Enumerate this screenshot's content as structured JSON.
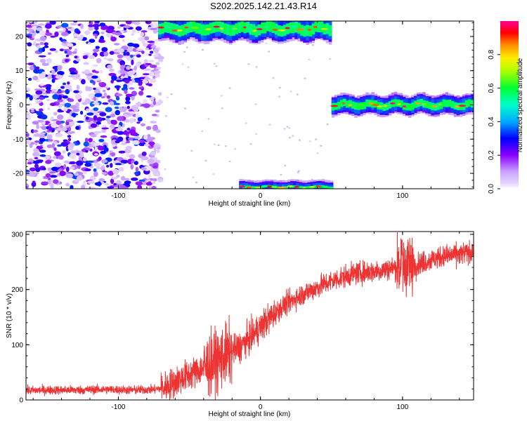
{
  "title": "S202.2025.142.21.43.R14",
  "chart_data": [
    {
      "type": "heatmap",
      "xlabel": "Height of straight line (km)",
      "ylabel": "Frequency (Hz)",
      "xlim": [
        -165,
        150
      ],
      "ylim": [
        -24.5,
        24.5
      ],
      "xticks": [
        -100,
        0,
        100
      ],
      "yticks": [
        -20,
        -10,
        0,
        10,
        20
      ],
      "colorbar": {
        "label": "Normalized spectral amplitude",
        "range": [
          0,
          1
        ],
        "ticks": [
          "0.0",
          "0.2",
          "0.4",
          "0.6",
          "0.8"
        ],
        "colormap": [
          "#ffffff",
          "#e6d5ff",
          "#8b00ff",
          "#0000ff",
          "#00ccff",
          "#00ff66",
          "#ccff00",
          "#ffcc00",
          "#ff4400",
          "#ff0000",
          "#ff0099"
        ]
      },
      "regions": [
        {
          "name": "broadband noise",
          "x": [
            -165,
            -70
          ],
          "y": [
            -24.5,
            24.5
          ],
          "amplitude": [
            0.0,
            0.35
          ]
        },
        {
          "name": "aliased line upper",
          "x": [
            -72,
            50
          ],
          "y": [
            20,
            24.5
          ],
          "amplitude": [
            0.5,
            1.0
          ]
        },
        {
          "name": "aliased line lower",
          "x": [
            -15,
            50
          ],
          "y": [
            -24.5,
            -23.5
          ],
          "amplitude": [
            0.5,
            1.0
          ]
        },
        {
          "name": "zero-frequency line",
          "x": [
            50,
            150
          ],
          "y": [
            -1.5,
            1.5
          ],
          "amplitude": [
            0.6,
            1.0
          ]
        }
      ]
    },
    {
      "type": "line",
      "xlabel": "Height of straight line (km)",
      "ylabel": "SNR (10 * v/v)",
      "xlim": [
        -165,
        150
      ],
      "ylim": [
        0,
        305
      ],
      "xticks": [
        -100,
        0,
        100
      ],
      "yticks": [
        0,
        100,
        200,
        300
      ],
      "color": "#ee3333",
      "series": [
        {
          "x": [
            -165,
            -150,
            -130,
            -110,
            -90,
            -75,
            -68,
            -62,
            -55,
            -45,
            -35,
            -25,
            -15,
            -5,
            5,
            15,
            25,
            35,
            45,
            55,
            65,
            75,
            85,
            95,
            100,
            105,
            115,
            125,
            135,
            150
          ],
          "y": [
            17,
            18,
            18,
            19,
            18,
            19,
            22,
            30,
            40,
            52,
            65,
            80,
            95,
            118,
            145,
            168,
            185,
            198,
            210,
            220,
            228,
            232,
            235,
            240,
            245,
            240,
            250,
            258,
            262,
            268
          ]
        }
      ]
    }
  ]
}
